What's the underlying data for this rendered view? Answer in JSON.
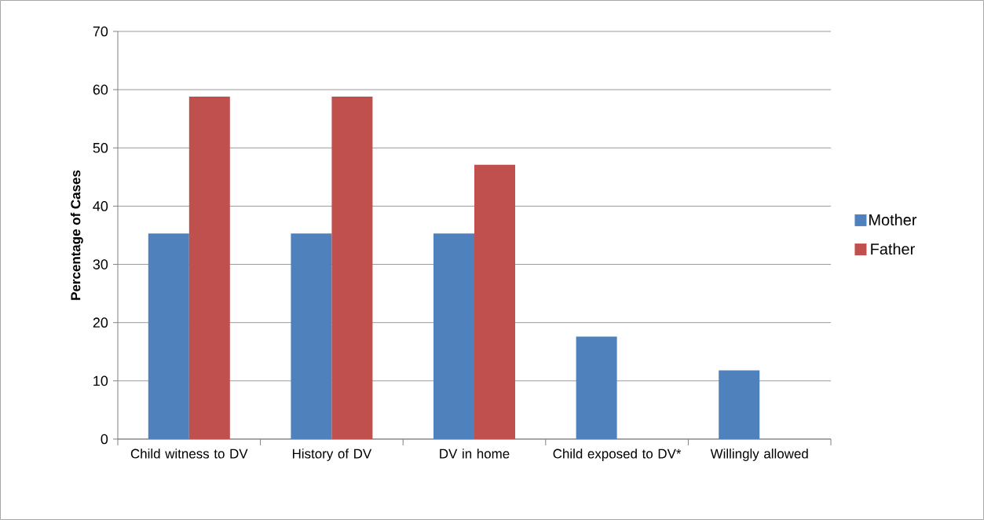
{
  "chart_data": {
    "type": "bar",
    "ylabel": "Percentage of Cases",
    "categories": [
      "Child witness to DV",
      "History of DV",
      "DV in home",
      "Child exposed to DV*",
      "Willingly allowed"
    ],
    "series": [
      {
        "name": "Mother",
        "color": "#4f81bd",
        "values": [
          35.3,
          35.3,
          35.3,
          17.6,
          11.8
        ]
      },
      {
        "name": "Father",
        "color": "#c0504d",
        "values": [
          58.8,
          58.8,
          47.1,
          0,
          0
        ]
      }
    ],
    "ylim": [
      0,
      70
    ],
    "yticks": [
      0,
      10,
      20,
      30,
      40,
      50,
      60,
      70
    ],
    "grid": "y",
    "legend": "right"
  }
}
